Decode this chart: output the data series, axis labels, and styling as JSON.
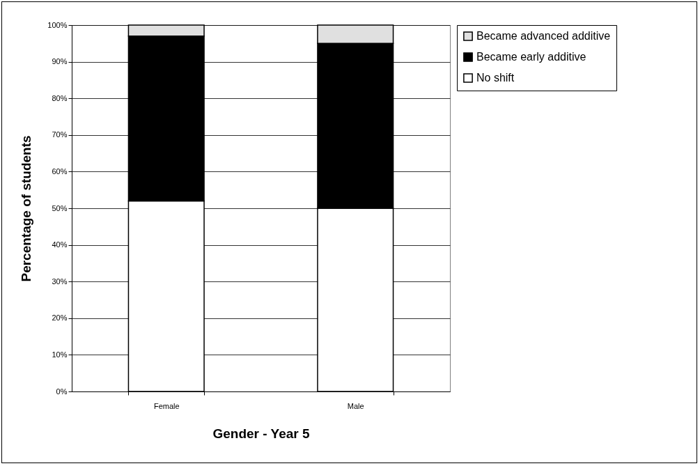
{
  "chart_data": {
    "type": "bar",
    "stacked": true,
    "xlabel": "Gender - Year 5",
    "ylabel": "Percentage of students",
    "categories": [
      "Female",
      "Male"
    ],
    "series": [
      {
        "name": "No shift",
        "color": "#ffffff",
        "values": [
          52,
          50
        ]
      },
      {
        "name": "Became early additive",
        "color": "#000000",
        "values": [
          45,
          45
        ]
      },
      {
        "name": "Became advanced additive",
        "color": "#e0e0e0",
        "values": [
          3,
          5
        ]
      }
    ],
    "ylim": [
      0,
      100
    ],
    "yticks": [
      {
        "value": 0,
        "label": "0%"
      },
      {
        "value": 10,
        "label": "10%"
      },
      {
        "value": 20,
        "label": "20%"
      },
      {
        "value": 30,
        "label": "30%"
      },
      {
        "value": 40,
        "label": "40%"
      },
      {
        "value": 50,
        "label": "50%"
      },
      {
        "value": 60,
        "label": "60%"
      },
      {
        "value": 70,
        "label": "70%"
      },
      {
        "value": 80,
        "label": "80%"
      },
      {
        "value": 90,
        "label": "90%"
      },
      {
        "value": 100,
        "label": "100%"
      }
    ],
    "grid": "y",
    "legend": "right"
  }
}
